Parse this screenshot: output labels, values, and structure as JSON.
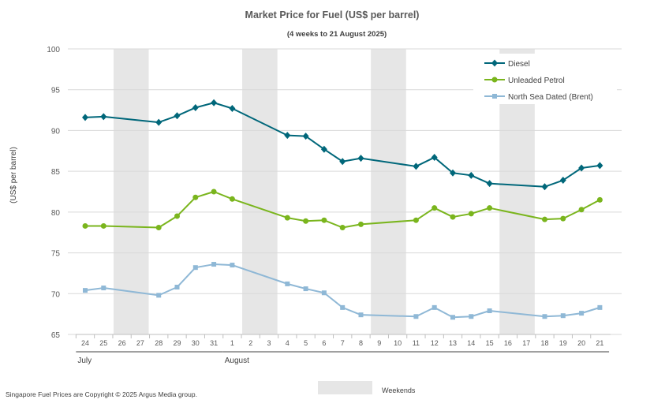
{
  "chart_data": {
    "type": "line",
    "title": "Market Price for Fuel (US$ per barrel)",
    "subtitle": "(4 weeks to 21 August 2025)",
    "ylabel": "(US$ per barrel)",
    "ylim": [
      65,
      100
    ],
    "yticks": [
      65,
      70,
      75,
      80,
      85,
      90,
      95,
      100
    ],
    "grid": true,
    "legend_position": "top-right",
    "x": [
      "24",
      "25",
      "26",
      "27",
      "28",
      "29",
      "30",
      "31",
      "1",
      "2",
      "3",
      "4",
      "5",
      "6",
      "7",
      "8",
      "9",
      "10",
      "11",
      "12",
      "13",
      "14",
      "15",
      "16",
      "17",
      "18",
      "19",
      "20",
      "21"
    ],
    "months": [
      {
        "label": "July",
        "start_index": 0,
        "end_index": 7
      },
      {
        "label": "August",
        "start_index": 8,
        "end_index": 28
      }
    ],
    "weekends": [
      [
        2,
        3
      ],
      [
        9,
        10
      ],
      [
        16,
        17
      ],
      [
        23,
        24
      ]
    ],
    "weekend_legend": "Weekends",
    "weekend_color": "#e6e6e6",
    "series": [
      {
        "name": "Diesel",
        "color": "#00677a",
        "marker": "diamond",
        "values": [
          91.6,
          91.7,
          null,
          null,
          91.0,
          91.8,
          92.8,
          93.4,
          92.7,
          null,
          null,
          89.4,
          89.3,
          87.7,
          86.2,
          86.6,
          null,
          null,
          85.6,
          86.7,
          84.8,
          84.5,
          83.5,
          null,
          null,
          83.1,
          83.9,
          85.4,
          85.7
        ]
      },
      {
        "name": "Unleaded Petrol",
        "color": "#7ab51d",
        "marker": "circle",
        "values": [
          78.3,
          78.3,
          null,
          null,
          78.1,
          79.5,
          81.8,
          82.5,
          81.6,
          null,
          null,
          79.3,
          78.9,
          79.0,
          78.1,
          78.5,
          null,
          null,
          79.0,
          80.5,
          79.4,
          79.8,
          80.5,
          null,
          null,
          79.1,
          79.2,
          80.3,
          81.5
        ]
      },
      {
        "name": "North Sea Dated (Brent)",
        "color": "#8fb8d6",
        "marker": "square",
        "values": [
          70.4,
          70.7,
          null,
          null,
          69.8,
          70.8,
          73.2,
          73.6,
          73.5,
          null,
          null,
          71.2,
          70.6,
          70.1,
          68.3,
          67.4,
          null,
          null,
          67.2,
          68.3,
          67.1,
          67.2,
          67.9,
          null,
          null,
          67.2,
          67.3,
          67.6,
          68.3
        ]
      }
    ]
  },
  "footer": {
    "copyright": "Singapore Fuel Prices are Copyright © 2025 Argus Media group."
  }
}
